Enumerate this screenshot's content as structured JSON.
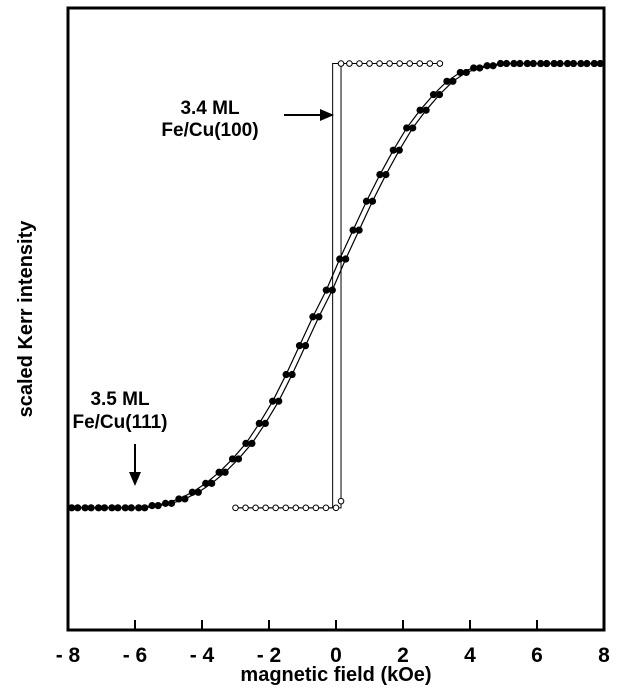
{
  "chart_data": {
    "type": "scatter",
    "xlabel": "magnetic field (kOe)",
    "ylabel": "scaled Kerr intensity",
    "xlim": [
      -8,
      8
    ],
    "ylim": [
      -1.55,
      1.25
    ],
    "grid": false,
    "x_tick_labels": [
      "- 8",
      "- 6",
      "- 4",
      "- 2",
      "0",
      "2",
      "4",
      "6",
      "8"
    ],
    "x_ticks": [
      -8,
      -6,
      -4,
      -2,
      0,
      2,
      4,
      6,
      8
    ],
    "annotations": [
      {
        "lines": [
          "3.4 ML",
          "Fe/Cu(100)"
        ],
        "points_to": [
          0,
          1.0
        ]
      },
      {
        "lines": [
          "3.5 ML",
          "Fe/Cu(111)"
        ],
        "points_to": [
          -6,
          -1.0
        ]
      }
    ],
    "series": [
      {
        "marker": "filled-circle",
        "color": "#000000",
        "x": [
          -7.8,
          -7.4,
          -7.0,
          -6.6,
          -6.2,
          -5.8,
          -5.4,
          -5.0,
          -4.6,
          -4.2,
          -3.8,
          -3.4,
          -3.0,
          -2.6,
          -2.2,
          -1.8,
          -1.4,
          -1.0,
          -0.6,
          -0.2,
          0.2,
          0.6,
          1.0,
          1.4,
          1.8,
          2.2,
          2.6,
          3.0,
          3.4,
          3.8,
          4.2,
          4.6,
          5.0,
          5.4,
          5.8,
          6.2,
          6.6,
          7.0,
          7.4,
          7.8
        ],
        "y": [
          -1.0,
          -1.0,
          -1.0,
          -1.0,
          -1.0,
          -1.0,
          -0.99,
          -0.98,
          -0.96,
          -0.93,
          -0.89,
          -0.84,
          -0.78,
          -0.71,
          -0.62,
          -0.52,
          -0.4,
          -0.27,
          -0.14,
          -0.02,
          0.12,
          0.25,
          0.38,
          0.5,
          0.61,
          0.71,
          0.79,
          0.86,
          0.92,
          0.96,
          0.98,
          0.99,
          1.0,
          1.0,
          1.0,
          1.0,
          1.0,
          1.0,
          1.0,
          1.0
        ]
      },
      {
        "marker": "open-circle",
        "color": "#000000",
        "branches": [
          {
            "x": [
              -3.0,
              0.15,
              0.15,
              3.1
            ],
            "y": [
              -1.0,
              -1.0,
              1.0,
              1.0
            ]
          },
          {
            "x": [
              3.1,
              -0.1,
              -0.1,
              -3.0
            ],
            "y": [
              1.0,
              1.0,
              -1.0,
              -1.0
            ]
          }
        ],
        "x": [
          -3.0,
          -2.7,
          -2.4,
          -2.1,
          -1.8,
          -1.5,
          -1.2,
          -0.9,
          -0.6,
          -0.3,
          0.0,
          0.15,
          0.15,
          0.4,
          0.7,
          1.0,
          1.3,
          1.6,
          1.9,
          2.2,
          2.5,
          2.8,
          3.1
        ],
        "y": [
          -1.0,
          -1.0,
          -1.0,
          -1.0,
          -1.0,
          -1.0,
          -1.0,
          -1.0,
          -1.0,
          -1.0,
          -1.0,
          -0.97,
          1.0,
          1.0,
          1.0,
          1.0,
          1.0,
          1.0,
          1.0,
          1.0,
          1.0,
          1.0,
          1.0
        ]
      }
    ]
  }
}
